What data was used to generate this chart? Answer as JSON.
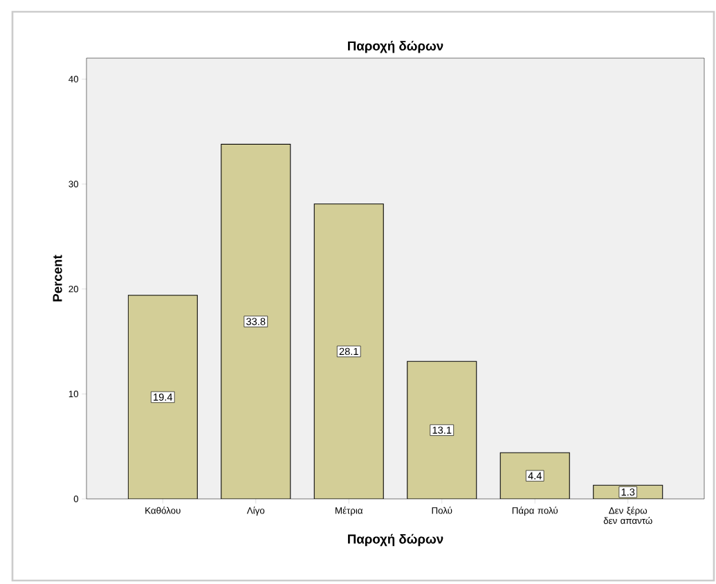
{
  "chart_data": {
    "type": "bar",
    "title": "Παροχή δώρων",
    "xlabel": "Παροχή δώρων",
    "ylabel": "Percent",
    "categories": [
      "Καθόλου",
      "Λίγο",
      "Μέτρια",
      "Πολύ",
      "Πάρα πολύ",
      "Δεν ξέρω δεν απαντώ"
    ],
    "values": [
      19.4,
      33.8,
      28.1,
      13.1,
      4.4,
      1.3
    ],
    "color": "#d3ce97",
    "ylim": [
      0,
      42
    ],
    "yticks": [
      0,
      10,
      20,
      30,
      40
    ],
    "grid": false,
    "data_labels": true
  }
}
